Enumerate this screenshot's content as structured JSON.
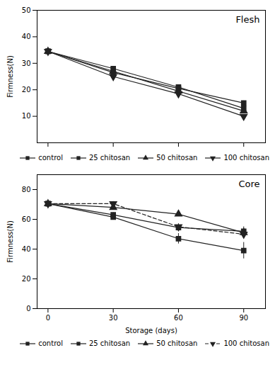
{
  "chart_data": [
    {
      "type": "line",
      "x": [
        0,
        30,
        60,
        90
      ],
      "xlim": [
        -5,
        100
      ],
      "xticks": [
        0,
        30,
        60,
        90
      ],
      "ylim": [
        0,
        50
      ],
      "yticks": [
        10,
        20,
        30,
        40,
        50
      ],
      "ylabel": "Firmness(N)",
      "tick_labels": "y",
      "grid": false,
      "legend": "lower right",
      "annotations": [
        "Flesh"
      ],
      "series": [
        {
          "name": "control",
          "color": "#222222",
          "marker": "square",
          "line_style": "solid",
          "values": [
            34.5,
            26.5,
            20.5,
            15.0
          ],
          "yerr": [
            0.5,
            1.0,
            0.8,
            0.8
          ]
        },
        {
          "name": "25 chitosan",
          "color": "#222222",
          "marker": "square",
          "line_style": "solid",
          "values": [
            34.5,
            28.0,
            21.0,
            13.0
          ],
          "yerr": [
            0.5,
            0.8,
            0.5,
            0.7
          ]
        },
        {
          "name": "50 chitosan",
          "color": "#222222",
          "marker": "triangle-up",
          "line_style": "solid",
          "values": [
            34.5,
            27.0,
            19.5,
            12.0
          ],
          "yerr": [
            0.5,
            0.8,
            0.5,
            0.7
          ]
        },
        {
          "name": "100 chitosan",
          "color": "#222222",
          "marker": "triangle-down",
          "line_style": "solid",
          "values": [
            34.5,
            25.0,
            18.5,
            10.0
          ],
          "yerr": [
            0.5,
            1.0,
            0.5,
            0.7
          ]
        }
      ]
    },
    {
      "type": "line",
      "x": [
        0,
        30,
        60,
        90
      ],
      "xlim": [
        -5,
        100
      ],
      "xticks": [
        0,
        30,
        60,
        90
      ],
      "ylim": [
        0,
        90
      ],
      "yticks": [
        0,
        20,
        40,
        60,
        80
      ],
      "xlabel": "Storage (days)",
      "ylabel": "Firmness(N)",
      "grid": false,
      "legend": "lower right",
      "annotations": [
        "Core"
      ],
      "series": [
        {
          "name": "control",
          "color": "#222222",
          "marker": "square",
          "line_style": "solid",
          "values": [
            70.5,
            61.5,
            47.0,
            39.0
          ],
          "yerr": [
            0.8,
            1.5,
            3.5,
            5.5
          ]
        },
        {
          "name": "25 chitosan",
          "color": "#222222",
          "marker": "square",
          "line_style": "solid",
          "values": [
            70.5,
            63.0,
            54.5,
            52.0
          ],
          "yerr": [
            0.8,
            1.5,
            2.5,
            3.0
          ]
        },
        {
          "name": "50 chitosan",
          "color": "#222222",
          "marker": "triangle-up",
          "line_style": "solid",
          "values": [
            70.5,
            68.0,
            63.5,
            51.0
          ],
          "yerr": [
            0.8,
            1.5,
            1.5,
            3.0
          ]
        },
        {
          "name": "100 chitosan",
          "color": "#222222",
          "marker": "triangle-down",
          "line_style": "dashed",
          "values": [
            70.5,
            70.5,
            55.0,
            50.0
          ],
          "yerr": [
            0.8,
            1.5,
            2.0,
            2.5
          ]
        }
      ]
    }
  ]
}
